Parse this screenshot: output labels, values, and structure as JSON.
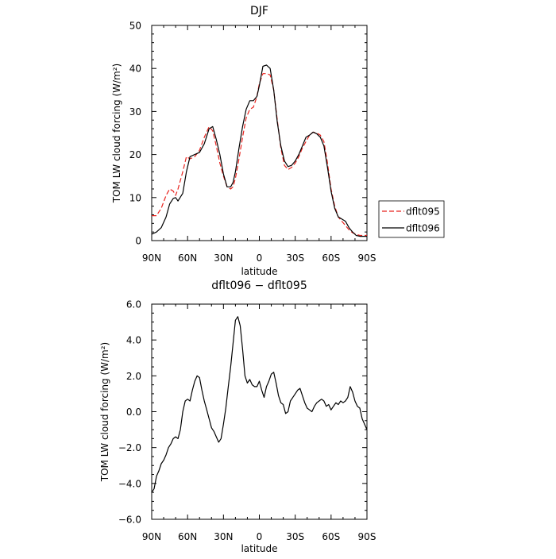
{
  "chart_data": [
    {
      "type": "line",
      "title": "DJF",
      "xlabel": "latitude",
      "ylabel": "TOM LW cloud forcing (W/m²)",
      "xlim": [
        90,
        -90
      ],
      "ylim": [
        0,
        50
      ],
      "x_ticks": [
        {
          "value": 90,
          "label": "90N"
        },
        {
          "value": 60,
          "label": "60N"
        },
        {
          "value": 30,
          "label": "30N"
        },
        {
          "value": 0,
          "label": "0"
        },
        {
          "value": -30,
          "label": "30S"
        },
        {
          "value": -60,
          "label": "60S"
        },
        {
          "value": -90,
          "label": "90S"
        }
      ],
      "y_ticks": [
        {
          "value": 0,
          "label": "0"
        },
        {
          "value": 10,
          "label": "10"
        },
        {
          "value": 20,
          "label": "20"
        },
        {
          "value": 30,
          "label": "30"
        },
        {
          "value": 40,
          "label": "40"
        },
        {
          "value": 50,
          "label": "50"
        }
      ],
      "legend_position": "right",
      "series": [
        {
          "name": "dflt095",
          "color": "#e8231e",
          "dash": "dashed",
          "x": [
            90,
            86,
            82,
            78,
            75,
            72,
            70,
            68,
            64,
            61,
            58,
            54,
            50,
            46,
            42,
            39,
            36,
            33,
            30,
            27,
            24,
            22,
            20,
            17,
            14,
            11,
            8,
            5,
            2,
            0,
            -3,
            -6,
            -9,
            -12,
            -15,
            -18,
            -21,
            -24,
            -27,
            -30,
            -33,
            -36,
            -39,
            -42,
            -45,
            -48,
            -51,
            -54,
            -57,
            -60,
            -63,
            -66,
            -69,
            -72,
            -75,
            -78,
            -81,
            -84,
            -87,
            -90
          ],
          "y": [
            5.8,
            5.8,
            7.5,
            10.5,
            12.0,
            11.5,
            10.5,
            12.0,
            16.0,
            19.5,
            19.0,
            19.5,
            21.0,
            24.0,
            26.5,
            25.5,
            22.0,
            18.0,
            15.0,
            12.5,
            12.0,
            12.5,
            14.5,
            19.0,
            24.0,
            28.5,
            30.5,
            31.0,
            33.5,
            36.5,
            38.8,
            38.8,
            38.5,
            35.0,
            28.0,
            21.5,
            17.5,
            16.5,
            17.0,
            18.0,
            19.5,
            21.5,
            23.0,
            24.5,
            25.2,
            25.0,
            24.5,
            23.0,
            18.0,
            12.0,
            8.0,
            5.5,
            4.5,
            3.5,
            2.5,
            1.8,
            1.5,
            1.2,
            1.2,
            1.2
          ]
        },
        {
          "name": "dflt096",
          "color": "#000000",
          "dash": "solid",
          "x": [
            90,
            86,
            82,
            78,
            75,
            72,
            70,
            68,
            64,
            61,
            58,
            54,
            50,
            46,
            42,
            39,
            36,
            33,
            30,
            27,
            24,
            22,
            20,
            17,
            14,
            11,
            8,
            5,
            2,
            0,
            -3,
            -6,
            -9,
            -12,
            -15,
            -18,
            -21,
            -24,
            -27,
            -30,
            -33,
            -36,
            -39,
            -42,
            -45,
            -48,
            -51,
            -54,
            -57,
            -60,
            -63,
            -66,
            -69,
            -72,
            -75,
            -78,
            -81,
            -84,
            -87,
            -90
          ],
          "y": [
            1.5,
            2.0,
            3.0,
            5.5,
            8.5,
            9.8,
            10.0,
            9.2,
            11.0,
            16.0,
            19.5,
            20.0,
            20.5,
            22.5,
            26.0,
            26.5,
            23.5,
            20.0,
            15.5,
            12.5,
            12.5,
            13.5,
            16.0,
            21.5,
            26.5,
            30.5,
            32.5,
            32.5,
            33.5,
            36.0,
            40.5,
            40.8,
            40.0,
            35.0,
            27.5,
            22.0,
            18.5,
            17.2,
            17.5,
            18.5,
            20.0,
            22.0,
            24.0,
            24.5,
            25.2,
            24.8,
            24.0,
            22.0,
            17.0,
            11.5,
            7.5,
            5.5,
            5.0,
            4.5,
            3.0,
            2.0,
            1.2,
            1.0,
            1.0,
            1.0
          ]
        }
      ]
    },
    {
      "type": "line",
      "title": "dflt096 − dflt095",
      "xlabel": "latitude",
      "ylabel": "TOM LW cloud forcing (W/m²)",
      "xlim": [
        90,
        -90
      ],
      "ylim": [
        -6,
        6
      ],
      "x_ticks": [
        {
          "value": 90,
          "label": "90N"
        },
        {
          "value": 60,
          "label": "60N"
        },
        {
          "value": 30,
          "label": "30N"
        },
        {
          "value": 0,
          "label": "0"
        },
        {
          "value": -30,
          "label": "30S"
        },
        {
          "value": -60,
          "label": "60S"
        },
        {
          "value": -90,
          "label": "90S"
        }
      ],
      "y_ticks": [
        {
          "value": -6,
          "label": "−6.0"
        },
        {
          "value": -4,
          "label": "−4.0"
        },
        {
          "value": -2,
          "label": "−2.0"
        },
        {
          "value": 0,
          "label": "0.0"
        },
        {
          "value": 2,
          "label": "2.0"
        },
        {
          "value": 4,
          "label": "4.0"
        },
        {
          "value": 6,
          "label": "6.0"
        }
      ],
      "series": [
        {
          "color": "#000000",
          "dash": "solid",
          "x": [
            90,
            88,
            86,
            84,
            82,
            80,
            78,
            76,
            74,
            72,
            70,
            68,
            66,
            64,
            62,
            60,
            58,
            56,
            54,
            52,
            50,
            48,
            46,
            44,
            42,
            40,
            38,
            36,
            34,
            32,
            30,
            28,
            26,
            24,
            22,
            20,
            18,
            16,
            14,
            12,
            10,
            8,
            6,
            4,
            2,
            0,
            -2,
            -4,
            -6,
            -8,
            -10,
            -12,
            -14,
            -16,
            -18,
            -20,
            -22,
            -24,
            -26,
            -28,
            -30,
            -32,
            -34,
            -36,
            -38,
            -40,
            -42,
            -44,
            -46,
            -48,
            -50,
            -52,
            -54,
            -56,
            -58,
            -60,
            -62,
            -64,
            -66,
            -68,
            -70,
            -72,
            -74,
            -76,
            -78,
            -80,
            -82,
            -84,
            -86,
            -88,
            -90
          ],
          "y": [
            -4.5,
            -4.3,
            -3.6,
            -3.3,
            -2.9,
            -2.7,
            -2.4,
            -2.0,
            -1.8,
            -1.5,
            -1.4,
            -1.5,
            -1.0,
            0.0,
            0.6,
            0.7,
            0.6,
            1.2,
            1.7,
            2.0,
            1.9,
            1.2,
            0.6,
            0.1,
            -0.4,
            -0.9,
            -1.1,
            -1.4,
            -1.7,
            -1.5,
            -0.7,
            0.2,
            1.4,
            2.5,
            3.8,
            5.1,
            5.3,
            4.8,
            3.5,
            2.0,
            1.6,
            1.8,
            1.5,
            1.4,
            1.4,
            1.7,
            1.2,
            0.8,
            1.4,
            1.7,
            2.1,
            2.2,
            1.6,
            0.9,
            0.5,
            0.4,
            -0.1,
            0.0,
            0.6,
            0.8,
            1.0,
            1.2,
            1.3,
            0.9,
            0.5,
            0.2,
            0.1,
            0.0,
            0.3,
            0.5,
            0.6,
            0.7,
            0.6,
            0.3,
            0.4,
            0.1,
            0.3,
            0.5,
            0.4,
            0.6,
            0.5,
            0.6,
            0.8,
            1.4,
            1.1,
            0.6,
            0.3,
            0.2,
            -0.4,
            -0.7,
            -1.0
          ]
        }
      ]
    }
  ]
}
